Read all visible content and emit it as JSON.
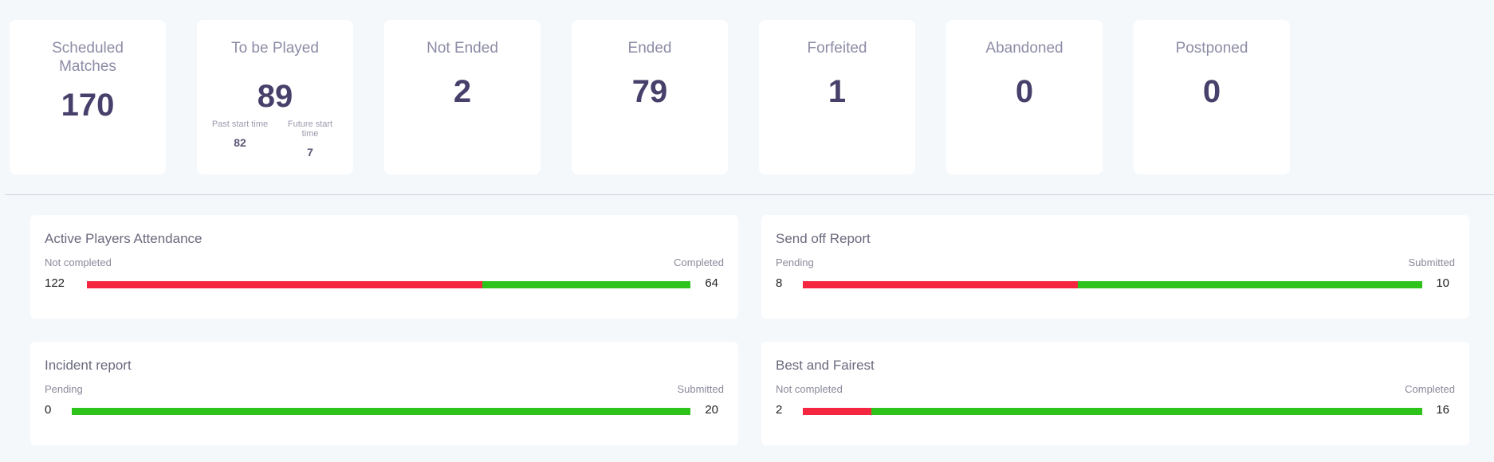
{
  "stats": [
    {
      "title": "Scheduled Matches",
      "value": "170"
    },
    {
      "title": "To be Played",
      "value": "89",
      "sub": [
        {
          "label": "Past start time",
          "value": "82"
        },
        {
          "label": "Future start time",
          "value": "7"
        }
      ]
    },
    {
      "title": "Not Ended",
      "value": "2"
    },
    {
      "title": "Ended",
      "value": "79"
    },
    {
      "title": "Forfeited",
      "value": "1"
    },
    {
      "title": "Abandoned",
      "value": "0"
    },
    {
      "title": "Postponed",
      "value": "0"
    }
  ],
  "reports": [
    {
      "title": "Active Players Attendance",
      "left_label": "Not completed",
      "right_label": "Completed",
      "left_value": "122",
      "right_value": "64",
      "red_fraction": 0.655
    },
    {
      "title": "Send off Report",
      "left_label": "Pending",
      "right_label": "Submitted",
      "left_value": "8",
      "right_value": "10",
      "red_fraction": 0.444
    },
    {
      "title": "Incident report",
      "left_label": "Pending",
      "right_label": "Submitted",
      "left_value": "0",
      "right_value": "20",
      "red_fraction": 0.0
    },
    {
      "title": "Best and Fairest",
      "left_label": "Not completed",
      "right_label": "Completed",
      "left_value": "2",
      "right_value": "16",
      "red_fraction": 0.111
    }
  ],
  "colors": {
    "pending": "#f5263f",
    "complete": "#2ec31a",
    "value": "#46406a"
  }
}
